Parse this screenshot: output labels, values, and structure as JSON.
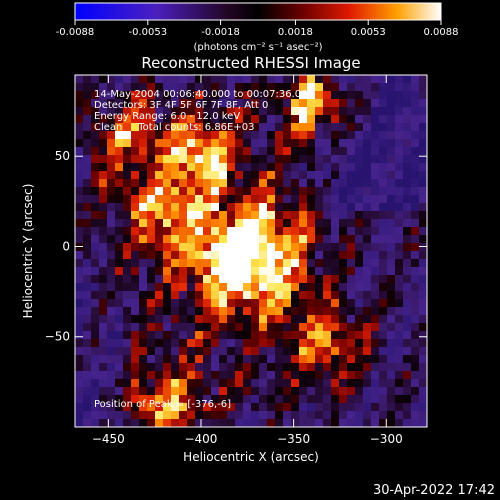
{
  "chart_data": {
    "type": "heatmap",
    "title": "Reconstructed RHESSI Image",
    "xlabel": "Heliocentric X (arcsec)",
    "ylabel": "Heliocentric Y (arcsec)",
    "xlim": [
      -468,
      -278
    ],
    "ylim": [
      -100,
      95
    ],
    "xticks": [
      -450,
      -400,
      -350,
      -300
    ],
    "yticks": [
      50,
      0,
      -50
    ],
    "peak": {
      "x": -376,
      "y": -6
    },
    "colormap": "fire (black-purple-red-yellow-white)",
    "colorbar": {
      "range": [
        -0.0088,
        0.0088
      ],
      "ticks": [
        -0.0088,
        -0.0053,
        -0.0018,
        0.0018,
        0.0053,
        0.0088
      ],
      "tick_labels": [
        "-0.0088",
        "-0.0053",
        "-0.0018",
        "0.0018",
        "0.0053",
        "0.0088"
      ],
      "unit_label": "(photons cm⁻² s⁻¹ asec⁻²)"
    },
    "sources": [
      {
        "x": -376,
        "y": -6,
        "value": 0.0088
      },
      {
        "x": -335,
        "y": 80,
        "value": 0.0062
      },
      {
        "x": -400,
        "y": 52,
        "value": 0.0058
      },
      {
        "x": -420,
        "y": 20,
        "value": 0.0048
      },
      {
        "x": -418,
        "y": -90,
        "value": 0.0055
      },
      {
        "x": -330,
        "y": -55,
        "value": 0.0045
      },
      {
        "x": -440,
        "y": 60,
        "value": 0.0035
      }
    ]
  },
  "info_lines": [
    "14-May-2004 00:06:40.000 to 00:07:36.000",
    "Detectors: 3F 4F 5F 6F 7F 8F, Att 0",
    "Energy Range: 6.0 - 12.0 keV",
    "Clean     Total counts: 6.86E+03"
  ],
  "peak_label": "Position of Peak = [-376,-6]",
  "timestamp": "30-Apr-2022 17:42",
  "colors": {
    "background": "#000000",
    "text": "#ffffff"
  }
}
